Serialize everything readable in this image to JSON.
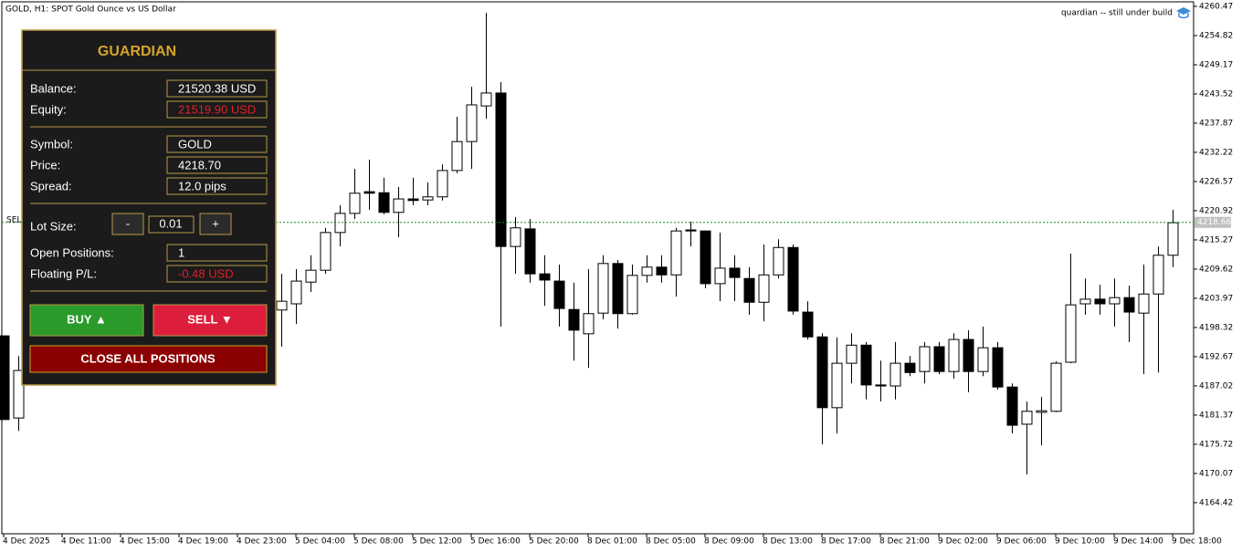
{
  "header": {
    "symbol_label": "GOLD, H1:  SPOT Gold Ounce vs US Dollar",
    "indicator_label": "quardian -- still under build"
  },
  "chart_data": {
    "type": "candlestick",
    "categories": [
      "4 Dec 2025",
      null,
      null,
      null,
      "4 Dec 11:00",
      null,
      null,
      null,
      "4 Dec 15:00",
      null,
      null,
      null,
      "4 Dec 19:00",
      null,
      null,
      null,
      "4 Dec 23:00",
      null,
      null,
      null,
      "5 Dec 04:00",
      null,
      null,
      null,
      "5 Dec 08:00",
      null,
      null,
      null,
      "5 Dec 12:00",
      null,
      null,
      null,
      "5 Dec 16:00",
      null,
      null,
      null,
      "5 Dec 20:00",
      null,
      null,
      null,
      "8 Dec 01:00",
      null,
      null,
      null,
      "8 Dec 05:00",
      null,
      null,
      null,
      "8 Dec 09:00",
      null,
      null,
      null,
      "8 Dec 13:00",
      null,
      null,
      null,
      "8 Dec 17:00",
      null,
      null,
      null,
      "8 Dec 21:00",
      null,
      null,
      null,
      "9 Dec 02:00",
      null,
      null,
      null,
      "9 Dec 06:00",
      null,
      null,
      null,
      "9 Dec 10:00",
      null,
      null,
      null,
      "9 Dec 14:00",
      null,
      null,
      null,
      "9 Dec 18:00"
    ],
    "open": [
      4196.7,
      4180.8,
      null,
      null,
      null,
      null,
      null,
      null,
      null,
      null,
      null,
      null,
      null,
      null,
      null,
      null,
      null,
      null,
      null,
      4201.7,
      4202.9,
      4207.1,
      4209.4,
      4216.7,
      4220.4,
      4224.6,
      4224.4,
      4220.6,
      4223.2,
      4223.0,
      4223.6,
      4228.7,
      4234.3,
      4241.2,
      4243.7,
      4214.0,
      4217.4,
      4208.7,
      4207.3,
      4201.8,
      4197.1,
      4201.1,
      4210.7,
      4201.0,
      4208.4,
      4210.0,
      4208.5,
      4217.2,
      4217.0,
      4206.8,
      4209.8,
      4207.8,
      4203.2,
      4208.5,
      4213.8,
      4201.3,
      4196.5,
      4182.8,
      4191.4,
      4194.9,
      4187.2,
      4187.0,
      4191.4,
      4189.8,
      4194.6,
      4189.8,
      4196.0,
      4189.8,
      4194.4,
      4186.8,
      4179.6,
      4181.9,
      4182.1,
      4191.6,
      4202.9,
      4203.8,
      4202.9,
      4204.1,
      4201.1,
      4204.8,
      4212.3
    ],
    "high": [
      4196.7,
      4192.8,
      null,
      null,
      null,
      null,
      null,
      null,
      null,
      null,
      null,
      null,
      null,
      null,
      null,
      null,
      null,
      null,
      null,
      4208.7,
      4209.6,
      4212.3,
      4217.6,
      4222.0,
      4229.0,
      4230.8,
      4227.3,
      4225.5,
      4227.3,
      4226.4,
      4229.9,
      4239.1,
      4244.9,
      4259.2,
      4245.8,
      4219.7,
      4219.3,
      4212.3,
      4210.5,
      4207.0,
      4209.6,
      4212.3,
      4211.4,
      4210.5,
      4212.3,
      4212.3,
      4217.6,
      4218.8,
      4217.0,
      4216.7,
      4212.3,
      4210.0,
      4214.4,
      4215.4,
      4214.4,
      4203.4,
      4197.2,
      4196.4,
      4197.2,
      4195.5,
      4191.9,
      4195.5,
      4192.8,
      4195.5,
      4195.5,
      4197.2,
      4197.8,
      4198.5,
      4195.5,
      4187.5,
      4184.0,
      4184.9,
      4191.8,
      4212.6,
      4207.8,
      4206.6,
      4207.8,
      4206.4,
      4210.5,
      4214.0,
      4221.1
    ],
    "low": [
      4180.5,
      4178.3,
      null,
      null,
      null,
      null,
      null,
      null,
      null,
      null,
      null,
      null,
      null,
      null,
      null,
      null,
      null,
      null,
      null,
      4194.6,
      4199.0,
      4205.2,
      4208.7,
      4214.0,
      4219.3,
      4221.1,
      4220.2,
      4215.8,
      4222.0,
      4222.0,
      4222.9,
      4228.2,
      4229.0,
      4238.7,
      4198.5,
      4208.7,
      4207.0,
      4202.5,
      4198.5,
      4191.9,
      4190.5,
      4199.9,
      4198.1,
      4200.8,
      4207.0,
      4207.0,
      4204.3,
      4214.0,
      4205.9,
      4203.4,
      4203.4,
      4200.8,
      4199.5,
      4207.8,
      4200.8,
      4196.0,
      4175.7,
      4177.8,
      4187.5,
      4184.4,
      4184.0,
      4184.4,
      4188.9,
      4187.5,
      4189.3,
      4188.4,
      4185.8,
      4188.9,
      4186.3,
      4177.8,
      4169.9,
      4175.5,
      4181.9,
      4191.4,
      4200.8,
      4200.8,
      4198.5,
      4195.5,
      4189.3,
      4189.6,
      4210.0
    ],
    "close": [
      4180.5,
      4190.0,
      null,
      null,
      null,
      null,
      null,
      null,
      null,
      null,
      null,
      null,
      null,
      null,
      null,
      null,
      null,
      null,
      null,
      4203.4,
      4207.3,
      4209.4,
      4216.7,
      4220.4,
      4224.3,
      4224.3,
      4220.6,
      4223.2,
      4222.9,
      4223.6,
      4228.7,
      4234.3,
      4241.4,
      4243.7,
      4214.0,
      4217.6,
      4208.7,
      4207.5,
      4202.0,
      4197.8,
      4201.0,
      4210.7,
      4201.0,
      4208.4,
      4210.0,
      4208.5,
      4217.0,
      4217.0,
      4206.8,
      4209.8,
      4208.0,
      4203.2,
      4208.5,
      4213.8,
      4201.5,
      4196.5,
      4182.8,
      4191.4,
      4194.9,
      4187.2,
      4187.0,
      4191.4,
      4189.6,
      4194.6,
      4189.8,
      4196.0,
      4189.8,
      4194.4,
      4186.8,
      4179.4,
      4182.1,
      4182.2,
      4191.4,
      4202.7,
      4203.8,
      4202.9,
      4204.1,
      4201.3,
      4204.8,
      4212.3,
      4218.6
    ],
    "up_color": "#ffffff",
    "down_color": "#000000",
    "ylim": [
      4158.4,
      4261.7
    ],
    "yticks": [
      4260.47,
      4254.82,
      4249.17,
      4243.52,
      4237.87,
      4232.22,
      4226.57,
      4220.92,
      4215.27,
      4209.62,
      4203.97,
      4198.32,
      4192.67,
      4187.02,
      4181.37,
      4175.72,
      4170.07,
      4164.42
    ],
    "current_price": 4218.66,
    "current_price_color": "#1a8a1a",
    "order_line_label": "SEL"
  },
  "panel": {
    "title": "GUARDIAN",
    "balance_label": "Balance:",
    "balance": "21520.38 USD",
    "equity_label": "Equity:",
    "equity": "21519.90 USD",
    "symbol_label": "Symbol:",
    "symbol": "GOLD",
    "price_label": "Price:",
    "price": "4218.70",
    "spread_label": "Spread:",
    "spread": "12.0 pips",
    "lot_label": "Lot Size:",
    "lot_minus": "-",
    "lot": "0.01",
    "lot_plus": "+",
    "positions_label": "Open Positions:",
    "positions": "1",
    "pl_label": "Floating P/L:",
    "pl": "-0.48 USD",
    "buy": "BUY ▲",
    "sell": "SELL ▼",
    "close_all": "CLOSE ALL POSITIONS"
  }
}
